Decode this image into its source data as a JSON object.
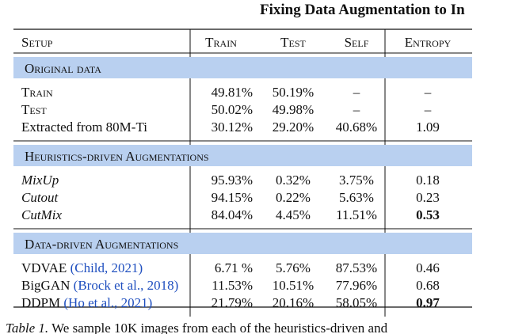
{
  "header": {
    "title": "Fixing Data Augmentation to In"
  },
  "table": {
    "columns": [
      "Setup",
      "Train",
      "Test",
      "Self",
      "Entropy"
    ],
    "sections": [
      {
        "title": "Original data",
        "rows": [
          {
            "label": "Train",
            "cells": [
              "49.81%",
              "50.19%",
              "–",
              "–"
            ]
          },
          {
            "label": "Test",
            "cells": [
              "50.02%",
              "49.98%",
              "–",
              "–"
            ]
          },
          {
            "label": "Extracted from 80M-Ti",
            "cells": [
              "30.12%",
              "29.20%",
              "40.68%",
              "1.09"
            ]
          }
        ]
      },
      {
        "title": "Heuristics-driven Augmentations",
        "rows": [
          {
            "label": "MixUp",
            "cells": [
              "95.93%",
              "0.32%",
              "3.75%",
              "0.18"
            ]
          },
          {
            "label": "Cutout",
            "cells": [
              "94.15%",
              "0.22%",
              "5.63%",
              "0.23"
            ]
          },
          {
            "label": "CutMix",
            "cells": [
              "84.04%",
              "4.45%",
              "11.51%",
              "0.53"
            ]
          }
        ]
      },
      {
        "title": "Data-driven Augmentations",
        "rows": [
          {
            "label": "VDVAE",
            "cite": "(Child, 2021)",
            "cells": [
              "6.71 %",
              "5.76%",
              "87.53%",
              "0.46"
            ]
          },
          {
            "label": "BigGAN",
            "cite": "(Brock et al., 2018)",
            "cells": [
              "11.53%",
              "10.51%",
              "77.96%",
              "0.68"
            ]
          },
          {
            "label": "DDPM",
            "cite": "(Ho et al., 2021)",
            "cells": [
              "21.79%",
              "20.16%",
              "58.05%",
              "0.97"
            ]
          }
        ]
      }
    ]
  },
  "caption": {
    "label": "Table 1.",
    "text": "We sample 10K images from each of the heuristics-driven and"
  }
}
